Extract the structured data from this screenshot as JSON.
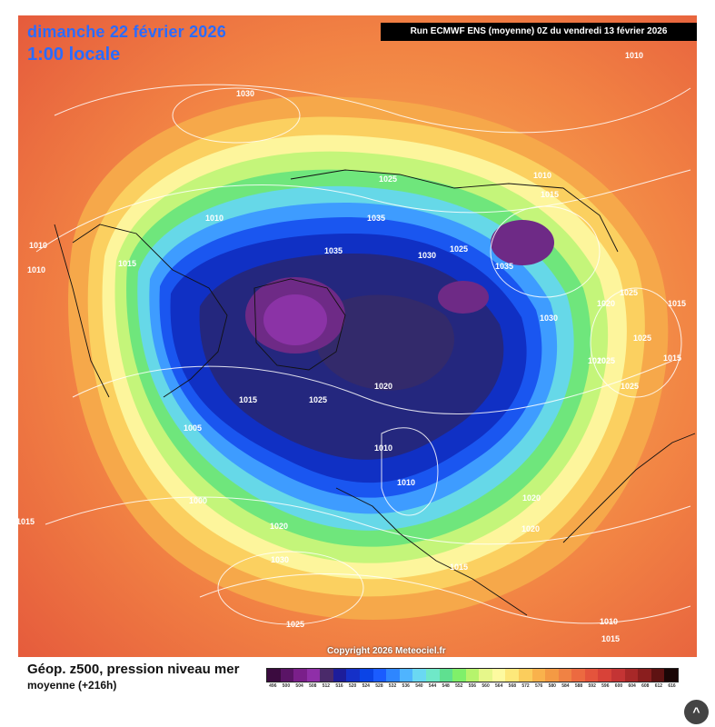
{
  "map": {
    "date": "dimanche 22 février 2026",
    "time": "1:00 locale",
    "run": "Run ECMWF ENS (moyenne) 0Z du vendredi 13 février 2026",
    "copyright": "Copyright 2026 Meteociel.fr",
    "isobars": [
      "1010",
      "1030",
      "1025",
      "1010",
      "1015",
      "1035",
      "1035",
      "1030",
      "1025",
      "1035",
      "1010",
      "1010",
      "1015",
      "1025",
      "1020",
      "1015",
      "1030",
      "1025",
      "1025",
      "1020",
      "1020",
      "1015",
      "1025",
      "1010",
      "1020",
      "1015",
      "1025",
      "1010",
      "1005",
      "1000",
      "1020",
      "1030",
      "1025",
      "1015",
      "1015",
      "1020",
      "1010",
      "1010",
      "1015"
    ]
  },
  "legend": {
    "title": "Géop. z500, pression niveau mer",
    "subtitle": "moyenne  (+216h)",
    "scale": [
      "496",
      "500",
      "504",
      "508",
      "512",
      "516",
      "520",
      "524",
      "528",
      "532",
      "536",
      "540",
      "544",
      "548",
      "552",
      "556",
      "560",
      "564",
      "568",
      "572",
      "576",
      "580",
      "584",
      "588",
      "592",
      "596",
      "600",
      "604",
      "608",
      "612",
      "616"
    ],
    "colors": [
      "#3b0b3f",
      "#5a1466",
      "#7a1f8a",
      "#8f2fa8",
      "#4a2a6a",
      "#1d1d9a",
      "#1530c8",
      "#0a44e6",
      "#1a5cff",
      "#2e86ff",
      "#4fb4ff",
      "#6ad8f2",
      "#6fe8c8",
      "#5fe090",
      "#7ff06a",
      "#b6f46c",
      "#e6f78a",
      "#fdfaa0",
      "#fde87a",
      "#fbcd5c",
      "#f9b24c",
      "#f49a44",
      "#f08244",
      "#ec6a40",
      "#e4543c",
      "#d84238",
      "#c43434",
      "#a82828",
      "#8a1e1e",
      "#5e1212",
      "#1a0606"
    ]
  },
  "ui": {
    "scroll_top": "^"
  }
}
